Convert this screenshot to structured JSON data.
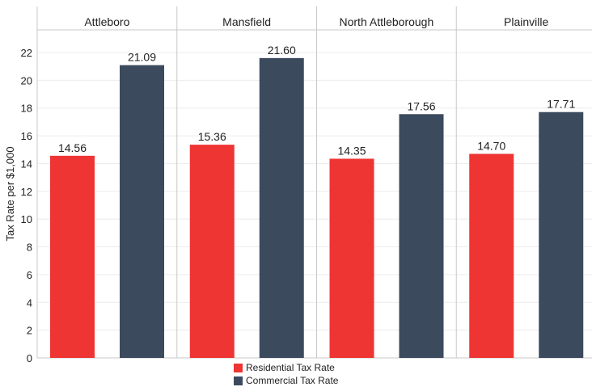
{
  "chart_data": {
    "type": "bar",
    "categories": [
      "Attleboro",
      "Mansfield",
      "North Attleborough",
      "Plainville"
    ],
    "series": [
      {
        "name": "Residential Tax Rate",
        "color": "#ef3434",
        "values": [
          14.56,
          15.36,
          14.35,
          14.7
        ]
      },
      {
        "name": "Commercial Tax Rate",
        "color": "#3c4a5e",
        "values": [
          21.09,
          21.6,
          17.56,
          17.71
        ]
      }
    ],
    "value_labels": [
      [
        "14.56",
        "21.09"
      ],
      [
        "15.36",
        "21.60"
      ],
      [
        "14.35",
        "17.56"
      ],
      [
        "14.70",
        "17.71"
      ]
    ],
    "ylabel": "Tax Rate per $1,000",
    "ylim": [
      0,
      22
    ],
    "yticks": [
      0,
      2,
      4,
      6,
      8,
      10,
      12,
      14,
      16,
      18,
      20,
      22
    ],
    "grid": "horizontal",
    "legend_position": "bottom-center"
  }
}
